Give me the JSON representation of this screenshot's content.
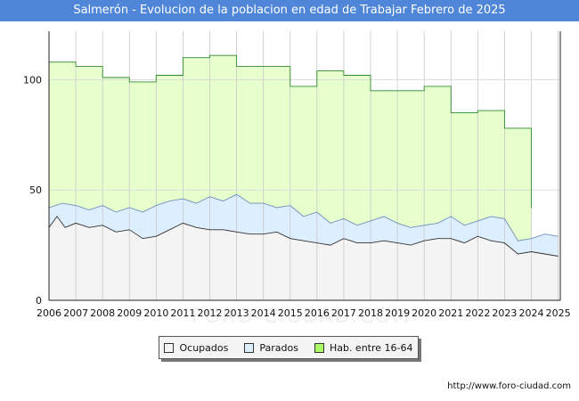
{
  "chart_data": {
    "type": "area",
    "title": "Salmerón - Evolucion de la poblacion en edad de Trabajar Febrero de 2025",
    "watermark": "FORO-CIUDAD.COM",
    "x_ticks": [
      "2006",
      "2007",
      "2008",
      "2009",
      "2010",
      "2011",
      "2012",
      "2013",
      "2014",
      "2015",
      "2016",
      "2017",
      "2018",
      "2019",
      "2020",
      "2021",
      "2022",
      "2023",
      "2024",
      "2025"
    ],
    "y_ticks": [
      0,
      50,
      100
    ],
    "xlim": [
      2006,
      2025.08
    ],
    "ylim": [
      0,
      122
    ],
    "series": [
      {
        "name": "Hab. entre 16-64",
        "color": "#e6ffcc",
        "stroke": "#2e8b2e",
        "type": "step",
        "points": [
          [
            2006,
            108
          ],
          [
            2007,
            106
          ],
          [
            2008,
            101
          ],
          [
            2009,
            99
          ],
          [
            2010,
            102
          ],
          [
            2011,
            110
          ],
          [
            2012,
            111
          ],
          [
            2013,
            106
          ],
          [
            2014,
            106
          ],
          [
            2015,
            97
          ],
          [
            2016,
            104
          ],
          [
            2017,
            102
          ],
          [
            2018,
            95
          ],
          [
            2019,
            95
          ],
          [
            2020,
            97
          ],
          [
            2021,
            85
          ],
          [
            2022,
            86
          ],
          [
            2023,
            78
          ],
          [
            2023.95,
            78
          ],
          [
            2024,
            42
          ]
        ]
      },
      {
        "name": "Parados",
        "color": "#ddeeff",
        "stroke": "#6f8fbf",
        "type": "line",
        "points": [
          [
            2006,
            42
          ],
          [
            2006.5,
            44
          ],
          [
            2007,
            43
          ],
          [
            2007.5,
            41
          ],
          [
            2008,
            43
          ],
          [
            2008.5,
            40
          ],
          [
            2009,
            42
          ],
          [
            2009.5,
            40
          ],
          [
            2010,
            43
          ],
          [
            2010.5,
            45
          ],
          [
            2011,
            46
          ],
          [
            2011.5,
            44
          ],
          [
            2012,
            47
          ],
          [
            2012.5,
            45
          ],
          [
            2013,
            48
          ],
          [
            2013.5,
            44
          ],
          [
            2014,
            44
          ],
          [
            2014.5,
            42
          ],
          [
            2015,
            43
          ],
          [
            2015.5,
            38
          ],
          [
            2016,
            40
          ],
          [
            2016.5,
            35
          ],
          [
            2017,
            37
          ],
          [
            2017.5,
            34
          ],
          [
            2018,
            36
          ],
          [
            2018.5,
            38
          ],
          [
            2019,
            35
          ],
          [
            2019.5,
            33
          ],
          [
            2020,
            34
          ],
          [
            2020.5,
            35
          ],
          [
            2021,
            38
          ],
          [
            2021.5,
            34
          ],
          [
            2022,
            36
          ],
          [
            2022.5,
            38
          ],
          [
            2023,
            37
          ],
          [
            2023.5,
            27
          ],
          [
            2024,
            28
          ],
          [
            2024.5,
            30
          ],
          [
            2025,
            29
          ]
        ]
      },
      {
        "name": "Ocupados",
        "color": "#f4f4f4",
        "stroke": "#333333",
        "type": "line",
        "points": [
          [
            2006,
            33
          ],
          [
            2006.3,
            38
          ],
          [
            2006.6,
            33
          ],
          [
            2007,
            35
          ],
          [
            2007.5,
            33
          ],
          [
            2008,
            34
          ],
          [
            2008.5,
            31
          ],
          [
            2009,
            32
          ],
          [
            2009.5,
            28
          ],
          [
            2010,
            29
          ],
          [
            2010.5,
            32
          ],
          [
            2011,
            35
          ],
          [
            2011.5,
            33
          ],
          [
            2012,
            32
          ],
          [
            2012.5,
            32
          ],
          [
            2013,
            31
          ],
          [
            2013.5,
            30
          ],
          [
            2014,
            30
          ],
          [
            2014.5,
            31
          ],
          [
            2015,
            28
          ],
          [
            2015.5,
            27
          ],
          [
            2016,
            26
          ],
          [
            2016.5,
            25
          ],
          [
            2017,
            28
          ],
          [
            2017.5,
            26
          ],
          [
            2018,
            26
          ],
          [
            2018.5,
            27
          ],
          [
            2019,
            26
          ],
          [
            2019.5,
            25
          ],
          [
            2020,
            27
          ],
          [
            2020.5,
            28
          ],
          [
            2021,
            28
          ],
          [
            2021.5,
            26
          ],
          [
            2022,
            29
          ],
          [
            2022.5,
            27
          ],
          [
            2023,
            26
          ],
          [
            2023.5,
            21
          ],
          [
            2024,
            22
          ],
          [
            2024.5,
            21
          ],
          [
            2025,
            20
          ]
        ]
      }
    ],
    "legend": [
      "Ocupados",
      "Parados",
      "Hab. entre 16-64"
    ]
  },
  "footer": {
    "url": "http://www.foro-ciudad.com"
  }
}
